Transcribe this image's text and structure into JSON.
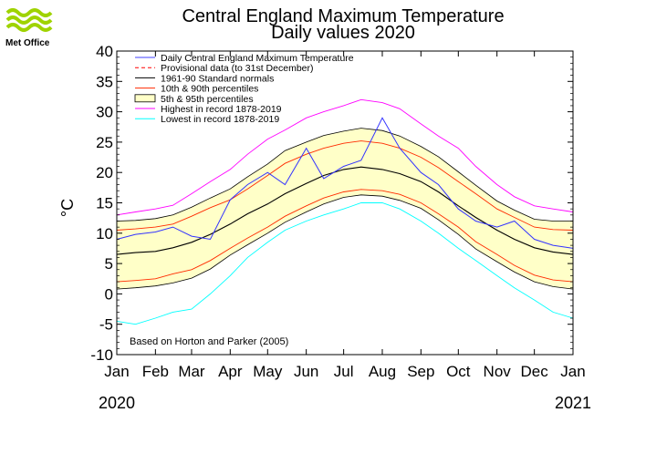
{
  "logo": {
    "text": "Met Office"
  },
  "chart_data": {
    "type": "line",
    "title": "Central England Maximum Temperature",
    "subtitle": "Daily values 2020",
    "ylabel": "°C",
    "ylim": [
      -10,
      40
    ],
    "yticks": [
      40,
      35,
      30,
      25,
      20,
      15,
      10,
      5,
      0,
      -5,
      -10
    ],
    "x_month_labels": [
      "Jan",
      "Feb",
      "Mar",
      "Apr",
      "May",
      "Jun",
      "Jul",
      "Aug",
      "Sep",
      "Oct",
      "Nov",
      "Dec",
      "Jan"
    ],
    "x_month_start_day": [
      0,
      31,
      60,
      91,
      121,
      152,
      182,
      213,
      244,
      274,
      305,
      335,
      366
    ],
    "x_days": 366,
    "year_start_label": "2020",
    "year_end_label": "2021",
    "note": "Based on Horton and Parker (2005)",
    "legend": [
      {
        "label": "Daily Central England Maximum Temperature",
        "color": "#4040ff",
        "style": "line"
      },
      {
        "label": "Provisional data (to 31st December)",
        "color": "#ff0000",
        "style": "dashed"
      },
      {
        "label": "1961-90 Standard normals",
        "color": "#000000",
        "style": "line"
      },
      {
        "label": "10th & 90th percentiles",
        "color": "#ff2a00",
        "style": "line"
      },
      {
        "label": "5th & 95th percentiles",
        "color": "#ffffc8",
        "style": "box"
      },
      {
        "label": "Highest in record 1878-2019",
        "color": "#ff00ff",
        "style": "line"
      },
      {
        "label": "Lowest in record 1878-2019",
        "color": "#00ffff",
        "style": "line"
      }
    ],
    "legend_placement": "top-left",
    "doy": [
      0,
      15,
      31,
      45,
      60,
      75,
      91,
      105,
      121,
      135,
      152,
      166,
      182,
      196,
      213,
      227,
      244,
      258,
      274,
      288,
      305,
      319,
      335,
      350,
      366
    ],
    "series": [
      {
        "name": "1961-90 Standard normals",
        "values": [
          6.5,
          6.8,
          7.0,
          7.6,
          8.5,
          9.8,
          11.5,
          13.2,
          14.8,
          16.5,
          18.2,
          19.5,
          20.5,
          20.9,
          20.5,
          19.8,
          18.5,
          16.8,
          14.5,
          12.6,
          10.5,
          9.0,
          7.6,
          6.9,
          6.5
        ]
      },
      {
        "name": "10th percentile",
        "values": [
          2.0,
          2.2,
          2.5,
          3.3,
          4.0,
          5.5,
          7.5,
          9.2,
          11.0,
          12.8,
          14.5,
          15.8,
          16.8,
          17.2,
          17.0,
          16.4,
          15.0,
          13.2,
          11.0,
          8.6,
          6.5,
          4.7,
          3.1,
          2.3,
          2.0
        ]
      },
      {
        "name": "90th percentile",
        "values": [
          10.5,
          10.7,
          11.0,
          11.5,
          12.8,
          14.2,
          15.5,
          17.3,
          19.5,
          21.5,
          23.0,
          24.0,
          24.8,
          25.2,
          24.8,
          24.0,
          22.5,
          20.8,
          18.5,
          16.5,
          14.0,
          12.6,
          11.0,
          10.6,
          10.5
        ]
      },
      {
        "name": "5th percentile",
        "values": [
          0.8,
          1.0,
          1.3,
          1.8,
          2.6,
          4.1,
          6.4,
          8.1,
          10.0,
          11.8,
          13.5,
          14.8,
          15.9,
          16.3,
          16.1,
          15.4,
          14.1,
          12.2,
          9.8,
          7.4,
          5.3,
          3.6,
          2.0,
          1.2,
          0.8
        ]
      },
      {
        "name": "95th percentile",
        "values": [
          12.0,
          12.1,
          12.4,
          13.0,
          14.3,
          15.8,
          17.3,
          19.3,
          21.4,
          23.6,
          25.0,
          26.1,
          26.8,
          27.3,
          26.9,
          26.0,
          24.3,
          22.6,
          20.1,
          17.9,
          15.3,
          13.8,
          12.3,
          12.0,
          12.0
        ]
      },
      {
        "name": "Highest in record 1878-2019",
        "values": [
          13.0,
          13.5,
          14.0,
          14.6,
          16.5,
          18.5,
          20.5,
          23.0,
          25.5,
          27.0,
          29.0,
          30.0,
          31.0,
          32.0,
          31.5,
          30.5,
          28.0,
          26.0,
          24.0,
          21.0,
          18.0,
          16.0,
          14.5,
          14.0,
          13.5
        ]
      },
      {
        "name": "Lowest in record 1878-2019",
        "values": [
          -4.5,
          -5.0,
          -4.0,
          -3.0,
          -2.5,
          0.0,
          3.0,
          6.0,
          8.5,
          10.5,
          12.0,
          13.0,
          14.0,
          15.0,
          15.0,
          14.0,
          12.0,
          10.0,
          7.5,
          5.5,
          3.0,
          1.0,
          -1.0,
          -3.0,
          -4.0
        ]
      },
      {
        "name": "Daily Central England Maximum Temperature",
        "values": [
          9.0,
          9.8,
          10.2,
          11.0,
          9.5,
          9.0,
          15.5,
          18.0,
          20.0,
          18.0,
          24.0,
          19.0,
          21.0,
          22.0,
          29.0,
          24.0,
          20.0,
          18.0,
          14.0,
          12.0,
          11.0,
          12.0,
          9.0,
          8.0,
          7.5
        ]
      }
    ]
  }
}
